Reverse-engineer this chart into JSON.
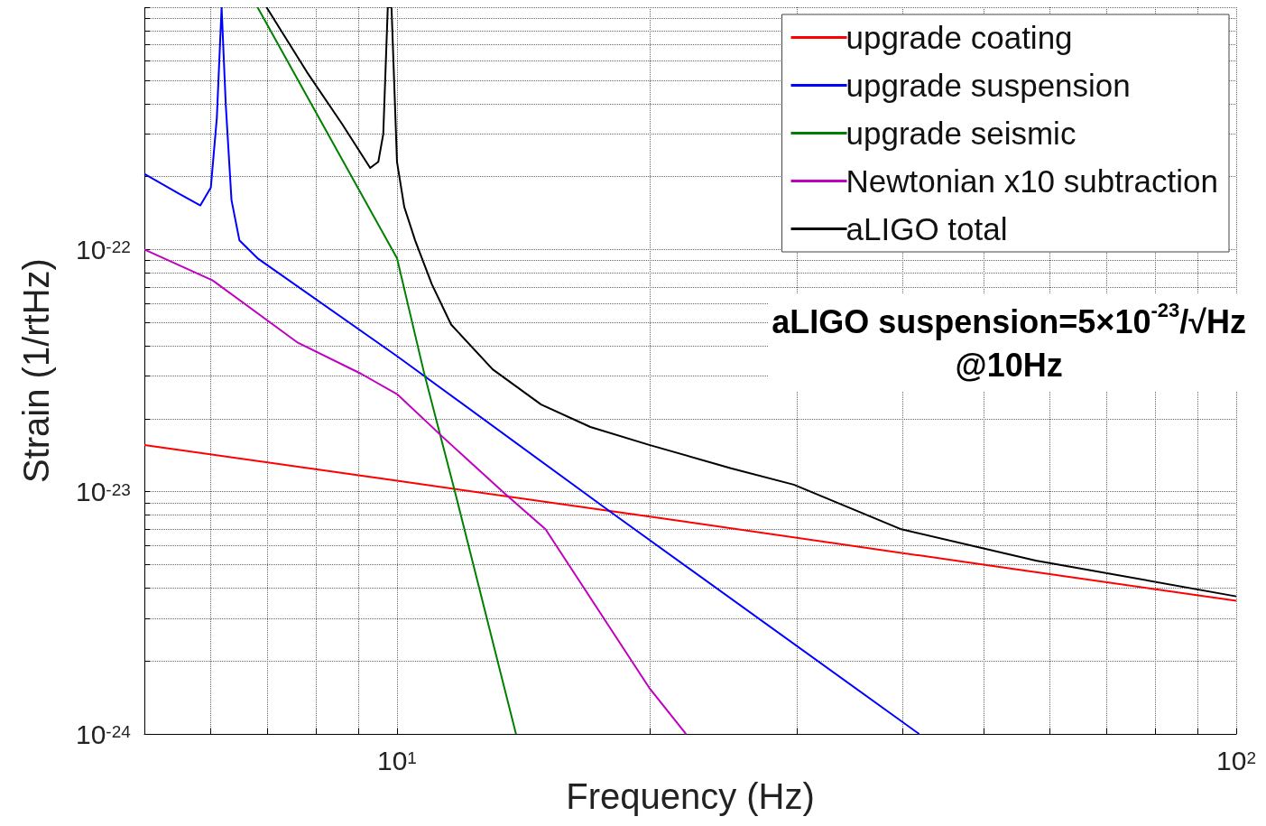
{
  "chart_data": {
    "type": "line",
    "xlabel": "Frequency (Hz)",
    "ylabel": "Strain (1/rtHz)",
    "log": "xy",
    "xlim": [
      5,
      100
    ],
    "ylim": [
      1e-24,
      1e-21
    ],
    "xticks": [
      {
        "value": 5,
        "label": null
      },
      {
        "value": 6,
        "label": null
      },
      {
        "value": 7,
        "label": null
      },
      {
        "value": 8,
        "label": null
      },
      {
        "value": 9,
        "label": null
      },
      {
        "value": 10,
        "label": "10$^{1}$"
      },
      {
        "value": 20,
        "label": null
      },
      {
        "value": 30,
        "label": null
      },
      {
        "value": 40,
        "label": null
      },
      {
        "value": 50,
        "label": null
      },
      {
        "value": 60,
        "label": null
      },
      {
        "value": 70,
        "label": null
      },
      {
        "value": 80,
        "label": null
      },
      {
        "value": 90,
        "label": null
      },
      {
        "value": 100,
        "label": "10$^{2}$"
      }
    ],
    "yticks": [
      {
        "value": 1e-24,
        "label": "10$^{-24}$"
      },
      {
        "value": 2e-24,
        "label": null
      },
      {
        "value": 3e-24,
        "label": null
      },
      {
        "value": 4e-24,
        "label": null
      },
      {
        "value": 5e-24,
        "label": null
      },
      {
        "value": 6e-24,
        "label": null
      },
      {
        "value": 7e-24,
        "label": null
      },
      {
        "value": 8e-24,
        "label": null
      },
      {
        "value": 9e-24,
        "label": null
      },
      {
        "value": 1e-23,
        "label": "10$^{-23}$"
      },
      {
        "value": 2e-23,
        "label": null
      },
      {
        "value": 3e-23,
        "label": null
      },
      {
        "value": 4e-23,
        "label": null
      },
      {
        "value": 5e-23,
        "label": null
      },
      {
        "value": 6e-23,
        "label": null
      },
      {
        "value": 7e-23,
        "label": null
      },
      {
        "value": 8e-23,
        "label": null
      },
      {
        "value": 9e-23,
        "label": null
      },
      {
        "value": 1e-22,
        "label": "10$^{-22}$"
      },
      {
        "value": 2e-22,
        "label": null
      },
      {
        "value": 3e-22,
        "label": null
      },
      {
        "value": 4e-22,
        "label": null
      },
      {
        "value": 5e-22,
        "label": null
      },
      {
        "value": 6e-22,
        "label": null
      },
      {
        "value": 7e-22,
        "label": null
      },
      {
        "value": 8e-22,
        "label": null
      },
      {
        "value": 9e-22,
        "label": null
      },
      {
        "value": 1e-21,
        "label": null
      }
    ],
    "grid": true,
    "legend": "top right",
    "marker": "none",
    "line_style": "solid",
    "series": [
      {
        "name": "upgrade coating",
        "color": "#ff0000",
        "x": [
          5,
          10,
          20,
          50,
          100
        ],
        "values": [
          1.56e-23,
          1.11e-23,
          7.9e-24,
          5e-24,
          3.55e-24
        ]
      },
      {
        "name": "upgrade suspension",
        "color": "#0000ff",
        "x": [
          5,
          5.5,
          5.83,
          6.0,
          6.1,
          6.18,
          6.25,
          6.35,
          6.49,
          6.82,
          10,
          18.1,
          41.9
        ],
        "values": [
          2.05e-22,
          1.7e-22,
          1.52e-22,
          1.8e-22,
          3.5e-22,
          1e-21,
          4e-22,
          1.6e-22,
          1.09e-22,
          9.2e-23,
          3.63e-23,
          8.1e-24,
          1e-24
        ]
      },
      {
        "name": "upgrade seismic",
        "color": "#008000",
        "x": [
          6.82,
          10,
          10.77,
          11.74,
          13.86
        ],
        "values": [
          1e-21,
          9.2e-23,
          3.1e-23,
          9.8e-24,
          1e-24
        ]
      },
      {
        "name": "Newtonian x10 subtraction",
        "color": "#c000c0",
        "x": [
          5,
          6.03,
          7.62,
          9.06,
          10,
          11.3,
          13.45,
          15.03,
          19.98,
          22.1
        ],
        "values": [
          1e-22,
          7.45e-23,
          4.12e-23,
          3.07e-23,
          2.53e-23,
          1.7e-23,
          9.8e-24,
          7e-24,
          1.55e-24,
          1e-24
        ]
      },
      {
        "name": "aLIGO total",
        "color": "#000000",
        "x": [
          6.99,
          7.81,
          8.6,
          9.29,
          9.5,
          9.63,
          9.75,
          9.85,
          10,
          10.2,
          10.51,
          11.0,
          11.6,
          13,
          14.85,
          17,
          19.98,
          25,
          29.7,
          39.9,
          57.7,
          100
        ],
        "values": [
          1e-21,
          5.4e-22,
          3.3e-22,
          2.17e-22,
          2.3e-22,
          3e-22,
          1e-21,
          1e-21,
          2.3e-22,
          1.5e-22,
          1.09e-22,
          7.2e-23,
          4.9e-23,
          3.2e-23,
          2.29e-23,
          1.85e-23,
          1.56e-23,
          1.25e-23,
          1.07e-23,
          7e-24,
          5.2e-24,
          3.7e-24
        ]
      }
    ],
    "annotations": [
      "aLIGO suspension=5×10$^{-23}$/√Hz\n@10Hz"
    ]
  }
}
